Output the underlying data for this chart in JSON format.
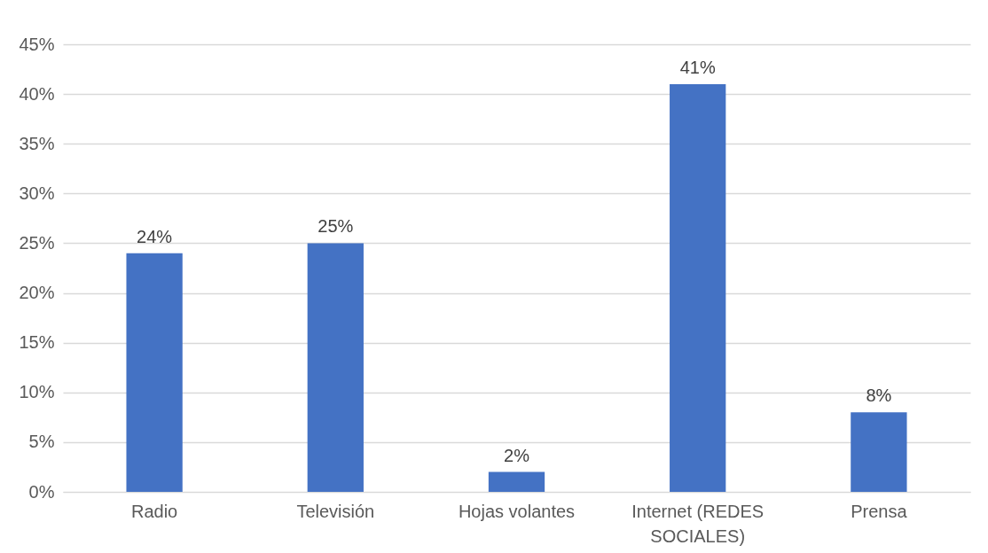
{
  "chart_data": {
    "type": "bar",
    "categories": [
      "Radio",
      "Televisión",
      "Hojas volantes",
      "Internet (REDES SOCIALES)",
      "Prensa"
    ],
    "values": [
      24,
      25,
      2,
      41,
      8
    ],
    "value_labels": [
      "24%",
      "25%",
      "2%",
      "41%",
      "8%"
    ],
    "color": "#4472c4",
    "ylim": [
      0,
      45
    ],
    "yticks": [
      {
        "value": 0,
        "label": "0%"
      },
      {
        "value": 5,
        "label": "5%"
      },
      {
        "value": 10,
        "label": "10%"
      },
      {
        "value": 15,
        "label": "15%"
      },
      {
        "value": 20,
        "label": "20%"
      },
      {
        "value": 25,
        "label": "25%"
      },
      {
        "value": 30,
        "label": "30%"
      },
      {
        "value": 35,
        "label": "35%"
      },
      {
        "value": 40,
        "label": "40%"
      },
      {
        "value": 45,
        "label": "45%"
      }
    ],
    "grid": true
  }
}
